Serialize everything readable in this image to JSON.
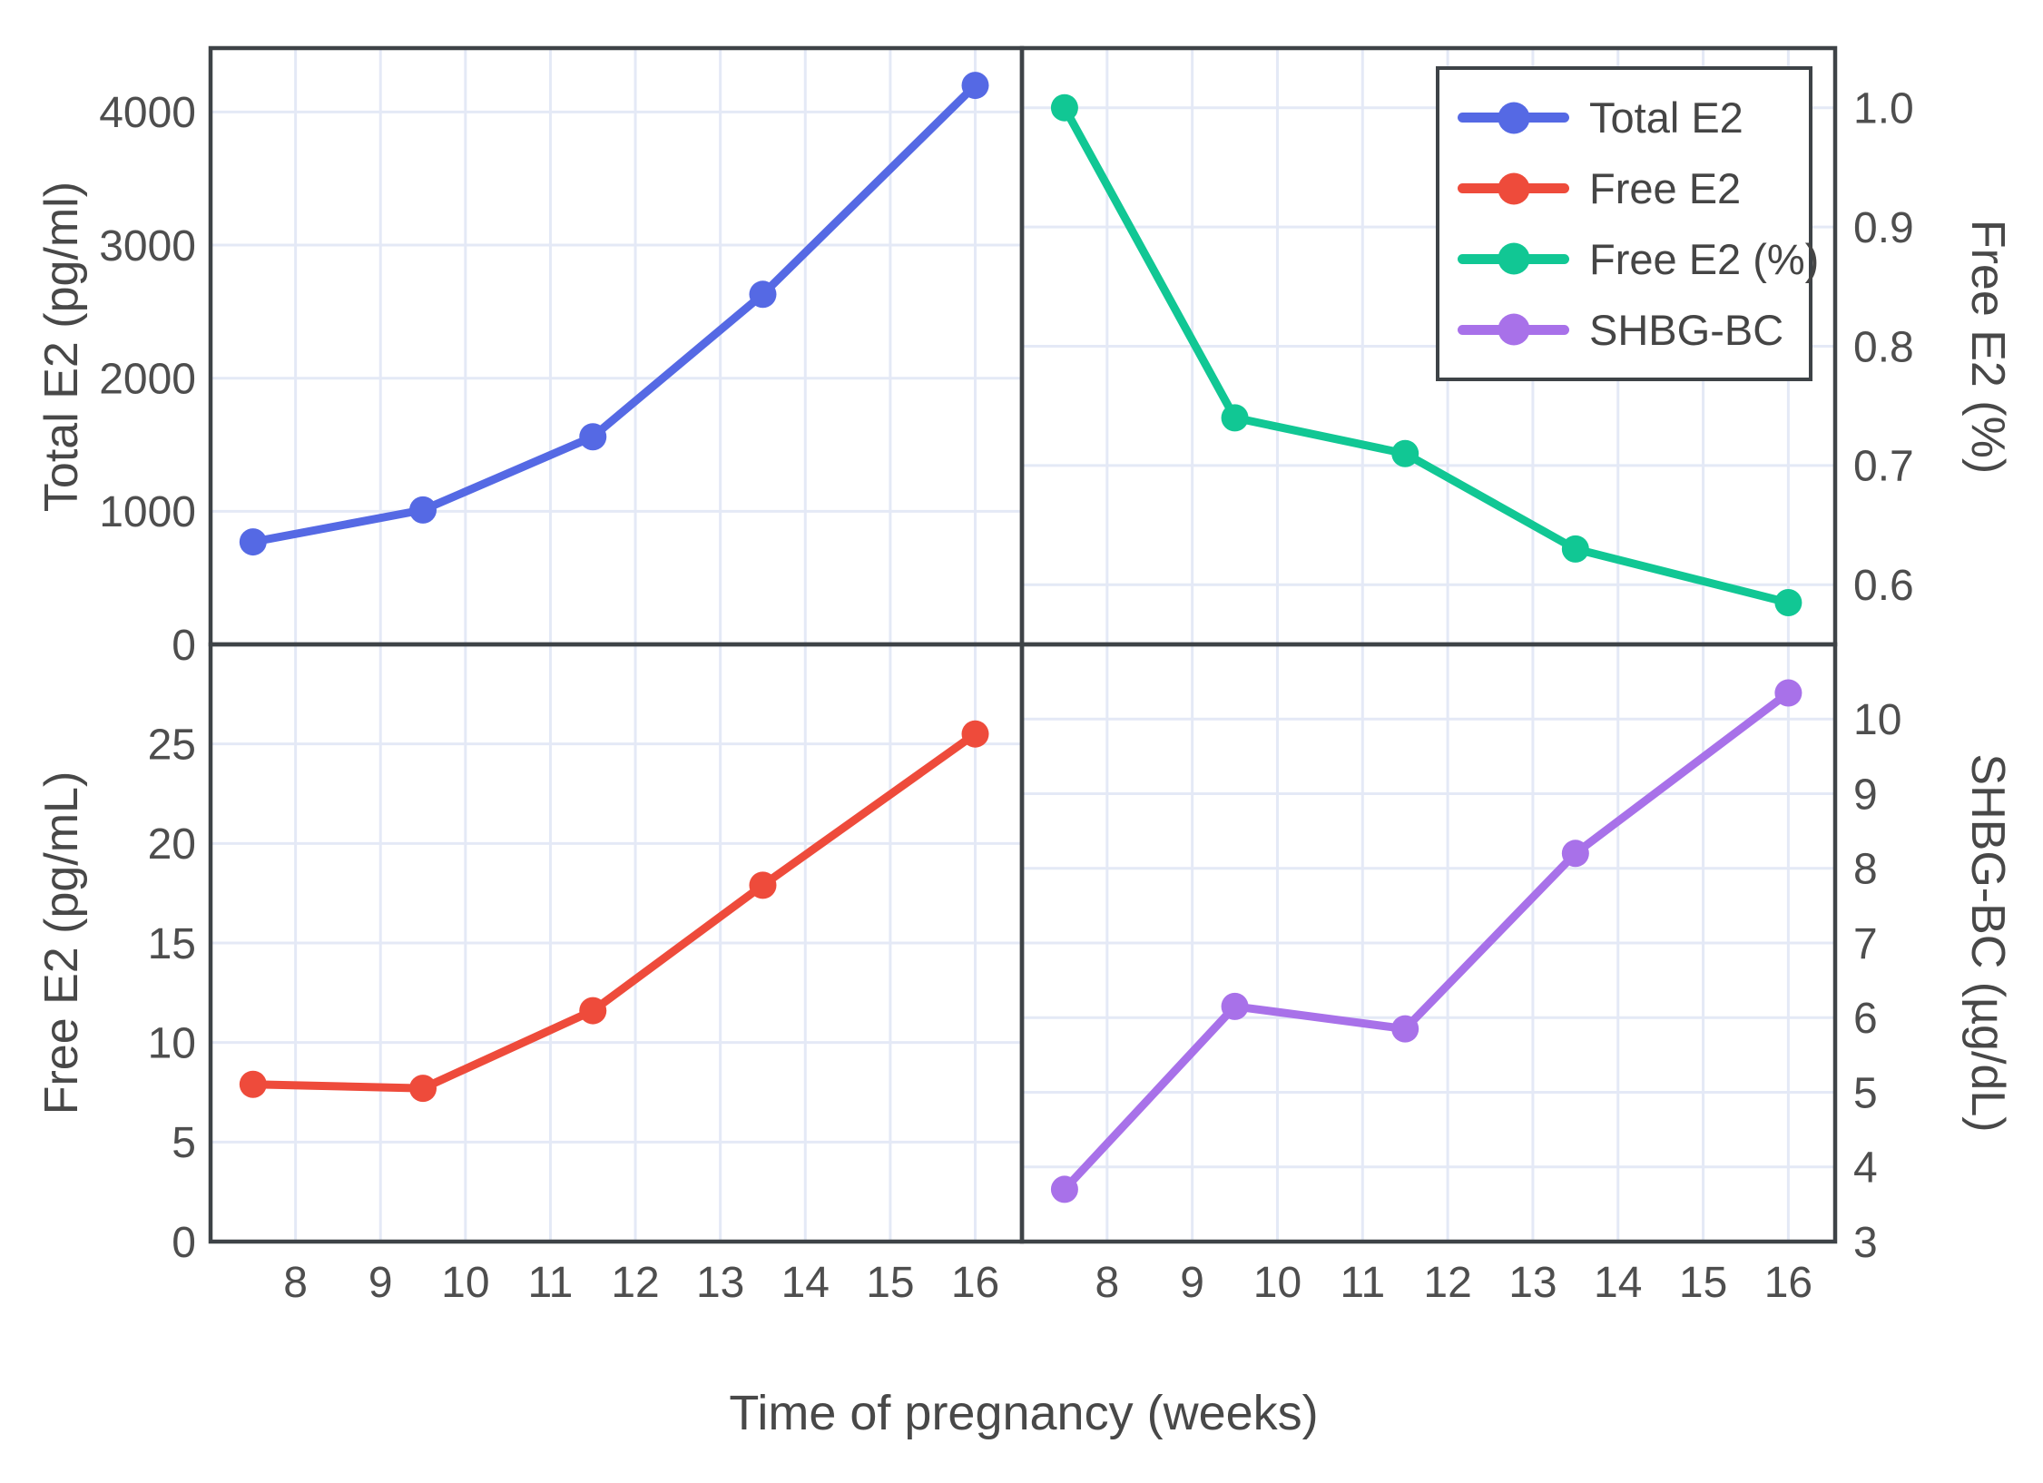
{
  "figure": {
    "xlabel": "Time of pregnancy (weeks)",
    "x_ticks": [
      8,
      9,
      10,
      11,
      12,
      13,
      14,
      15,
      16
    ],
    "x_tick_labels": [
      "8",
      "9",
      "10",
      "11",
      "12",
      "13",
      "14",
      "15",
      "16"
    ],
    "background_color": "#ffffff",
    "grid_color": "#e4e9f6",
    "axis_color": "#3e4347",
    "tick_text_color": "#4e4e4e"
  },
  "legend": {
    "position": "upper-right-panel",
    "items": [
      {
        "label": "Total E2",
        "color": "#5569e4"
      },
      {
        "label": "Free E2",
        "color": "#ee4b3b"
      },
      {
        "label": "Free E2 (%)",
        "color": "#11c794"
      },
      {
        "label": "SHBG-BC",
        "color": "#a871e9"
      }
    ]
  },
  "chart_data": [
    {
      "type": "line",
      "panel": "top-left",
      "series": "Total E2",
      "ylabel": "Total E2 (pg/ml)",
      "color": "#5569e4",
      "x": [
        7.5,
        9.5,
        11.5,
        13.5,
        16
      ],
      "y": [
        770,
        1010,
        1560,
        2630,
        4200
      ],
      "xlim": [
        7.0,
        16.55
      ],
      "ylim": [
        0,
        4480
      ],
      "yticks": [
        0,
        1000,
        2000,
        3000,
        4000
      ],
      "ytick_labels": [
        "0",
        "1000",
        "2000",
        "3000",
        "4000"
      ],
      "ytick_side": "left",
      "grid": true
    },
    {
      "type": "line",
      "panel": "top-right",
      "series": "Free E2 (%)",
      "ylabel": "Free E2 (%)",
      "color": "#11c794",
      "x": [
        7.5,
        9.5,
        11.5,
        13.5,
        16
      ],
      "y": [
        1.0,
        0.74,
        0.71,
        0.63,
        0.585
      ],
      "xlim": [
        7.0,
        16.55
      ],
      "ylim": [
        0.55,
        1.05
      ],
      "yticks": [
        0.6,
        0.7,
        0.8,
        0.9,
        1.0
      ],
      "ytick_labels": [
        "0.6",
        "0.7",
        "0.8",
        "0.9",
        "1.0"
      ],
      "ytick_side": "right",
      "grid": true
    },
    {
      "type": "line",
      "panel": "bottom-left",
      "series": "Free E2",
      "ylabel": "Free E2 (pg/mL)",
      "color": "#ee4b3b",
      "x": [
        7.5,
        9.5,
        11.5,
        13.5,
        16
      ],
      "y": [
        7.9,
        7.7,
        11.6,
        17.9,
        25.5
      ],
      "xlim": [
        7.0,
        16.55
      ],
      "ylim": [
        0,
        30
      ],
      "yticks": [
        0,
        5,
        10,
        15,
        20,
        25
      ],
      "ytick_labels": [
        "0",
        "5",
        "10",
        "15",
        "20",
        "25"
      ],
      "ytick_side": "left",
      "grid": true
    },
    {
      "type": "line",
      "panel": "bottom-right",
      "series": "SHBG-BC",
      "ylabel": "SHBG-BC (µg/dL)",
      "color": "#a871e9",
      "x": [
        7.5,
        9.5,
        11.5,
        13.5,
        16
      ],
      "y": [
        3.7,
        6.15,
        5.85,
        8.2,
        10.35
      ],
      "xlim": [
        7.0,
        16.55
      ],
      "ylim": [
        3,
        11
      ],
      "yticks": [
        3,
        4,
        5,
        6,
        7,
        8,
        9,
        10
      ],
      "ytick_labels": [
        "3",
        "4",
        "5",
        "6",
        "7",
        "8",
        "9",
        "10"
      ],
      "ytick_side": "right",
      "grid": true
    }
  ]
}
